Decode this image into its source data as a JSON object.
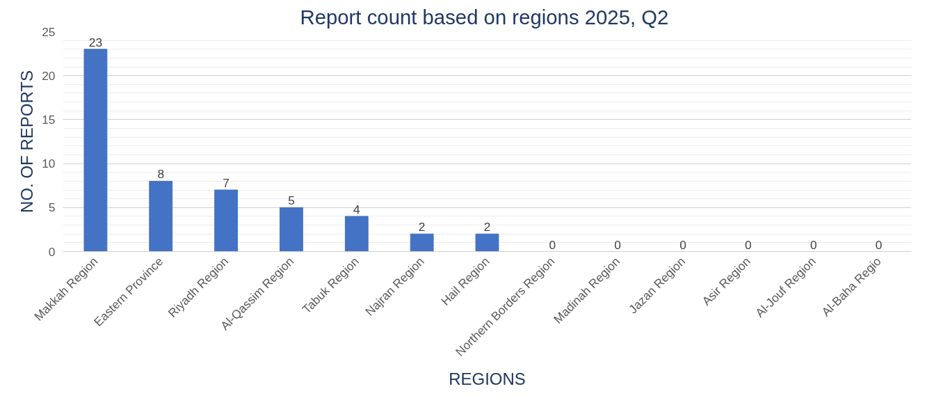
{
  "chart_data": {
    "type": "bar",
    "title": "Report count based on regions  2025, Q2",
    "xlabel": "REGIONS",
    "ylabel": "NO. OF REPORTS",
    "categories": [
      "Makkah Region",
      "Eastern Province",
      "Riyadh Region",
      "Al-Qassim Region",
      "Tabuk Region",
      "Najran Region",
      "Hail Region",
      "Northern Borders Region",
      "Madinah Region",
      "Jazan Region",
      "Asir Region",
      "Al-Jouf Region",
      "Al-Baha Regio"
    ],
    "values": [
      23,
      8,
      7,
      5,
      4,
      2,
      2,
      0,
      0,
      0,
      0,
      0,
      0
    ],
    "color": "#4472c4",
    "ylim": [
      0,
      25
    ],
    "yticks": [
      0,
      5,
      10,
      15,
      20,
      25
    ],
    "grid": "y",
    "data_labels": true
  }
}
